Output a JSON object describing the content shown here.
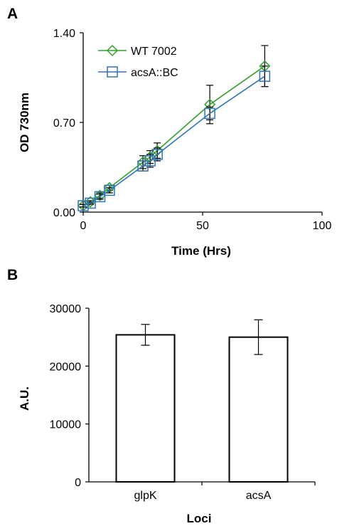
{
  "chart_data": [
    {
      "panel": "A",
      "type": "line",
      "xlabel": "Time (Hrs)",
      "ylabel": "OD 730nm",
      "xlim": [
        0,
        100
      ],
      "ylim": [
        0,
        1.4
      ],
      "xticks": [
        0,
        50,
        100
      ],
      "yticks": [
        "0.00",
        "0.70",
        "1.40"
      ],
      "legend_position": "top-left",
      "grid": false,
      "series": [
        {
          "name": "WT 7002",
          "color": "#33a02c",
          "marker": "diamond",
          "x": [
            0,
            3,
            7,
            11,
            25,
            28,
            31,
            53,
            76
          ],
          "y": [
            0.05,
            0.08,
            0.13,
            0.19,
            0.39,
            0.43,
            0.48,
            0.84,
            1.14
          ],
          "err": [
            0.01,
            0.01,
            0.02,
            0.02,
            0.05,
            0.05,
            0.06,
            0.15,
            0.16
          ]
        },
        {
          "name": "acsA::BC",
          "color": "#2e75b6",
          "marker": "square",
          "x": [
            0,
            3,
            7,
            11,
            25,
            28,
            31,
            53,
            76
          ],
          "y": [
            0.05,
            0.07,
            0.12,
            0.17,
            0.36,
            0.4,
            0.45,
            0.77,
            1.06
          ],
          "err": [
            0.01,
            0.01,
            0.02,
            0.02,
            0.04,
            0.05,
            0.05,
            0.05,
            0.08
          ]
        }
      ]
    },
    {
      "panel": "B",
      "type": "bar",
      "xlabel": "Loci",
      "ylabel": "A.U.",
      "categories": [
        "glpK",
        "acsA"
      ],
      "values": [
        25400,
        25000
      ],
      "err": [
        1800,
        3000
      ],
      "ylim": [
        0,
        30000
      ],
      "yticks": [
        "0",
        "10000",
        "20000",
        "30000"
      ],
      "grid": false
    }
  ]
}
